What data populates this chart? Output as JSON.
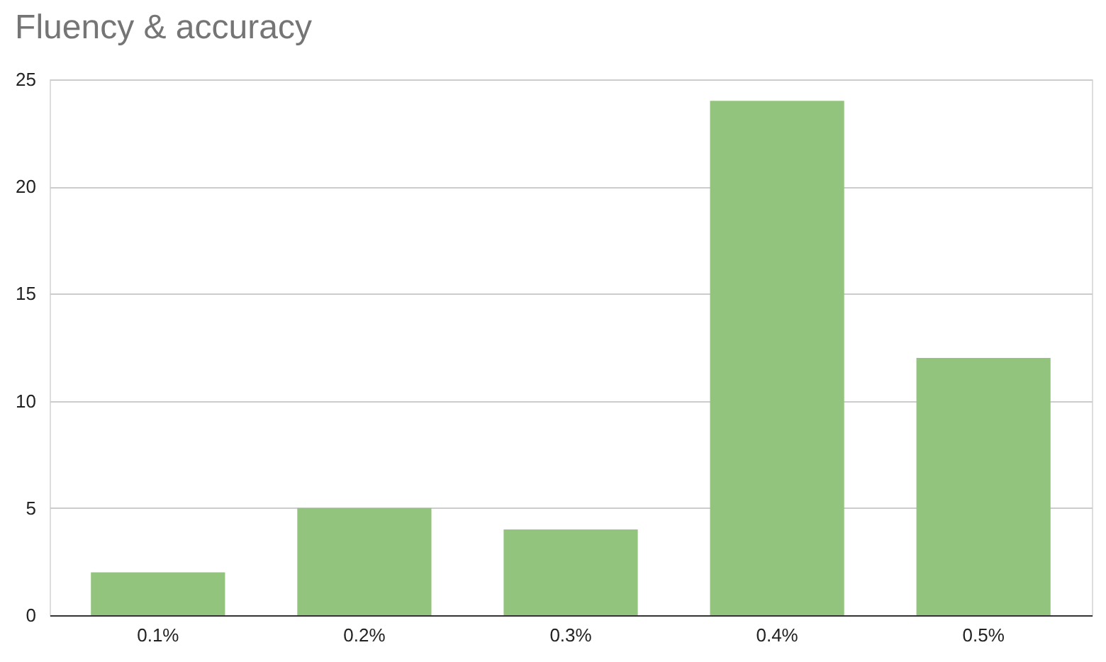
{
  "chart_data": {
    "type": "bar",
    "title": "Fluency & accuracy",
    "categories": [
      "0.1%",
      "0.2%",
      "0.3%",
      "0.4%",
      "0.5%"
    ],
    "values": [
      2,
      5,
      4,
      24,
      12
    ],
    "color": "#93c47d",
    "ylim": [
      0,
      25
    ],
    "yticks": [
      0,
      5,
      10,
      15,
      20,
      25
    ],
    "grid": "y"
  }
}
